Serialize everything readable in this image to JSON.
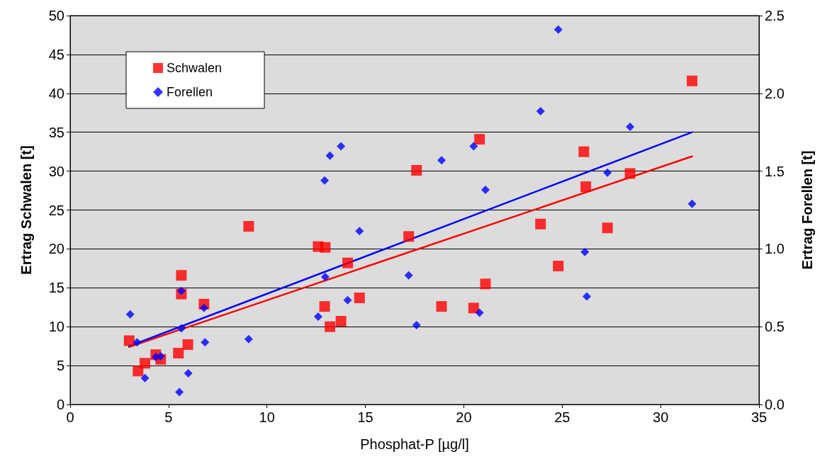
{
  "chart_data": {
    "type": "scatter",
    "xlabel": "Phosphat-P [µg/l]",
    "ylabel": "Ertrag Schwalen [t]",
    "y2label": "Ertrag Forellen [t]",
    "xlim": [
      0,
      35
    ],
    "xticks": [
      0,
      5,
      10,
      15,
      20,
      25,
      30,
      35
    ],
    "ylim": [
      0,
      50
    ],
    "yticks": [
      0,
      5,
      10,
      15,
      20,
      25,
      30,
      35,
      40,
      45,
      50
    ],
    "y2lim": [
      0,
      2.5
    ],
    "y2ticks": [
      {
        "value": 0,
        "label": "0.0"
      },
      {
        "value": 0.5,
        "label": "0.5"
      },
      {
        "value": 1,
        "label": "1.0"
      },
      {
        "value": 1.5,
        "label": "1.5"
      },
      {
        "value": 2,
        "label": "2.0"
      },
      {
        "value": 2.5,
        "label": "2.5"
      }
    ],
    "grid": "y",
    "legend": "top left",
    "series": [
      {
        "name": "Schwalen",
        "color": "#ff0000",
        "marker": "square",
        "x": [
          3.0,
          3.45,
          3.8,
          4.35,
          4.6,
          5.5,
          5.65,
          5.65,
          5.98,
          6.8,
          9.07,
          12.6,
          12.93,
          12.96,
          13.2,
          13.76,
          14.1,
          14.7,
          17.2,
          17.6,
          18.87,
          20.5,
          20.8,
          21.1,
          23.9,
          24.8,
          26.1,
          26.2,
          27.3,
          28.45,
          31.6
        ],
        "values": [
          8.2,
          4.3,
          5.3,
          6.4,
          5.8,
          6.6,
          16.6,
          14.2,
          7.7,
          12.9,
          22.9,
          20.3,
          12.6,
          20.2,
          10.0,
          10.7,
          18.2,
          13.7,
          21.6,
          30.1,
          12.6,
          12.4,
          34.1,
          15.5,
          23.2,
          17.8,
          32.5,
          28.0,
          22.7,
          29.7,
          41.6
        ]
      },
      {
        "name": "Forellen",
        "color": "#0000ff",
        "marker": "diamond",
        "axis": "y2",
        "x": [
          3.05,
          3.4,
          3.8,
          4.35,
          4.6,
          5.55,
          5.65,
          5.65,
          6.0,
          6.8,
          6.85,
          9.07,
          12.6,
          12.93,
          12.96,
          13.2,
          13.76,
          14.1,
          14.7,
          17.2,
          17.6,
          18.87,
          20.5,
          20.8,
          21.1,
          23.9,
          24.8,
          26.15,
          26.25,
          27.3,
          28.45,
          31.6
        ],
        "values": [
          0.58,
          0.4,
          0.17,
          0.305,
          0.31,
          0.08,
          0.73,
          0.49,
          0.2,
          0.62,
          0.4,
          0.42,
          0.565,
          1.44,
          0.82,
          1.6,
          1.66,
          0.67,
          1.115,
          0.83,
          0.51,
          1.57,
          1.66,
          0.59,
          1.38,
          1.885,
          2.41,
          0.98,
          0.695,
          1.49,
          1.785,
          1.29
        ]
      },
      {
        "type": "line",
        "color": "#ff0000",
        "marker": "none",
        "x": [
          3.0,
          31.6
        ],
        "values": [
          7.4,
          31.9
        ]
      },
      {
        "type": "line",
        "color": "#0000ff",
        "marker": "none",
        "axis": "y2",
        "x": [
          3.0,
          31.6
        ],
        "values": [
          0.375,
          1.75
        ]
      }
    ]
  }
}
